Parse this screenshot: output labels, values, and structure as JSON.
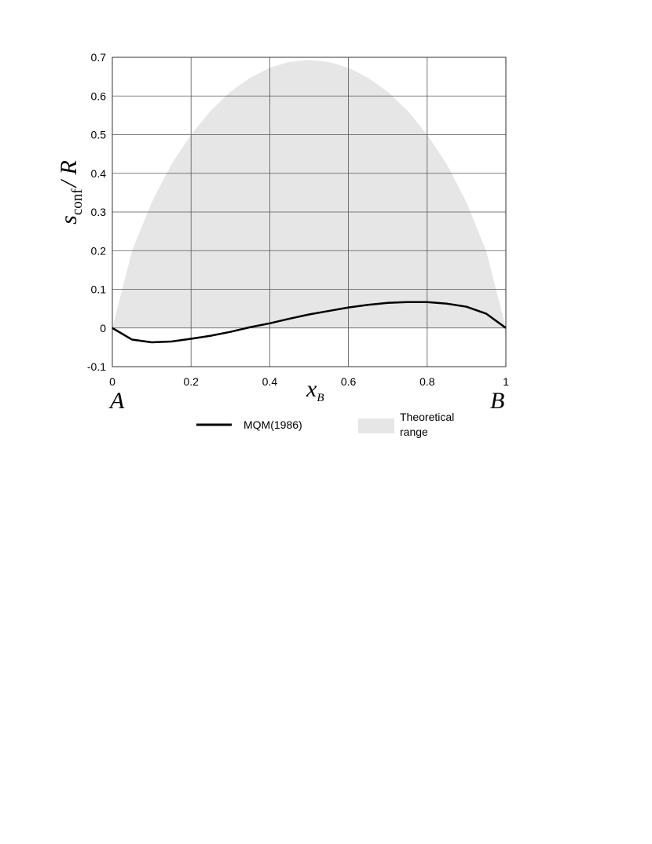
{
  "chart_data": {
    "type": "line",
    "y_label": {
      "main": "s",
      "sub": "conf",
      "rest": "/ R"
    },
    "x_label": {
      "main": "x",
      "sub": "B"
    },
    "annotations": [
      "A",
      "B"
    ],
    "x": [
      0,
      0.05,
      0.1,
      0.15,
      0.2,
      0.25,
      0.3,
      0.35,
      0.4,
      0.45,
      0.5,
      0.55,
      0.6,
      0.65,
      0.7,
      0.75,
      0.8,
      0.85,
      0.9,
      0.95,
      1
    ],
    "series": [
      {
        "name": "MQM(1986)",
        "type": "line",
        "color": "#000000",
        "values": [
          0,
          -0.03,
          -0.037,
          -0.035,
          -0.028,
          -0.02,
          -0.01,
          0.002,
          0.012,
          0.024,
          0.035,
          0.044,
          0.053,
          0.06,
          0.065,
          0.067,
          0.067,
          0.063,
          0.055,
          0.037,
          0
        ]
      },
      {
        "name": "Theoretical range",
        "type": "area",
        "color": "#e6e6e6",
        "values": [
          0,
          0.199,
          0.325,
          0.423,
          0.5,
          0.562,
          0.611,
          0.647,
          0.673,
          0.688,
          0.693,
          0.688,
          0.673,
          0.647,
          0.611,
          0.562,
          0.5,
          0.423,
          0.325,
          0.199,
          0
        ]
      }
    ],
    "xlim": [
      0,
      1
    ],
    "xticks": [
      0,
      0.2,
      0.4,
      0.6,
      0.8,
      1
    ],
    "ylim": [
      -0.1,
      0.7
    ],
    "yticks": [
      -0.1,
      0,
      0.1,
      0.2,
      0.3,
      0.4,
      0.5,
      0.6,
      0.7
    ],
    "grid": true
  }
}
